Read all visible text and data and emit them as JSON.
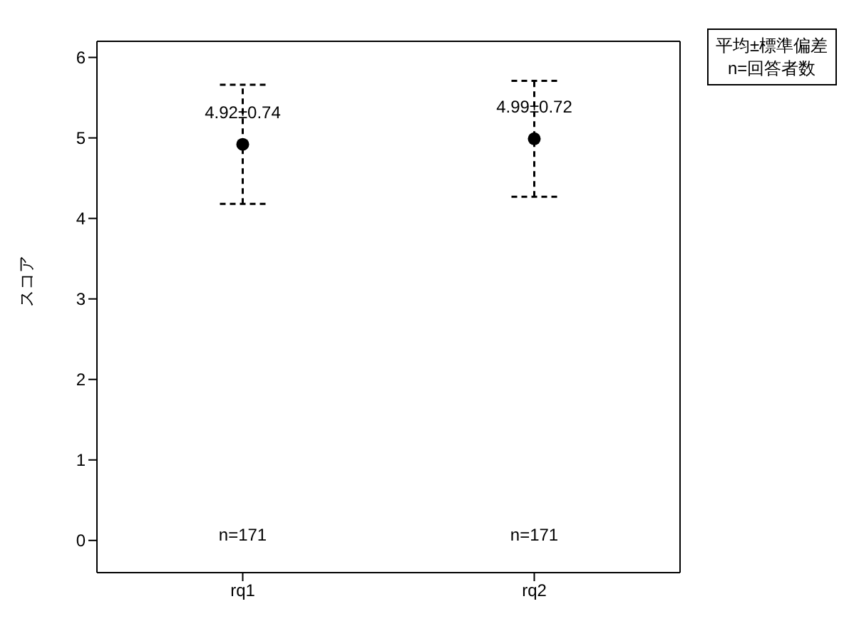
{
  "chart_data": {
    "type": "scatter",
    "ylabel": "スコア",
    "categories": [
      "rq1",
      "rq2"
    ],
    "values": [
      4.92,
      4.99
    ],
    "errors": [
      0.74,
      0.72
    ],
    "color": "#000000",
    "marker": "circle",
    "line_style": "dashed",
    "value_labels": [
      "4.92±0.74",
      "4.99±0.72"
    ],
    "ylim": [
      -0.4,
      6.2
    ],
    "yticks": [
      0,
      1,
      2,
      3,
      4,
      5,
      6
    ],
    "annotations": [
      "n=171",
      "n=171",
      "平均±標準偏差",
      "n=回答者数"
    ]
  }
}
